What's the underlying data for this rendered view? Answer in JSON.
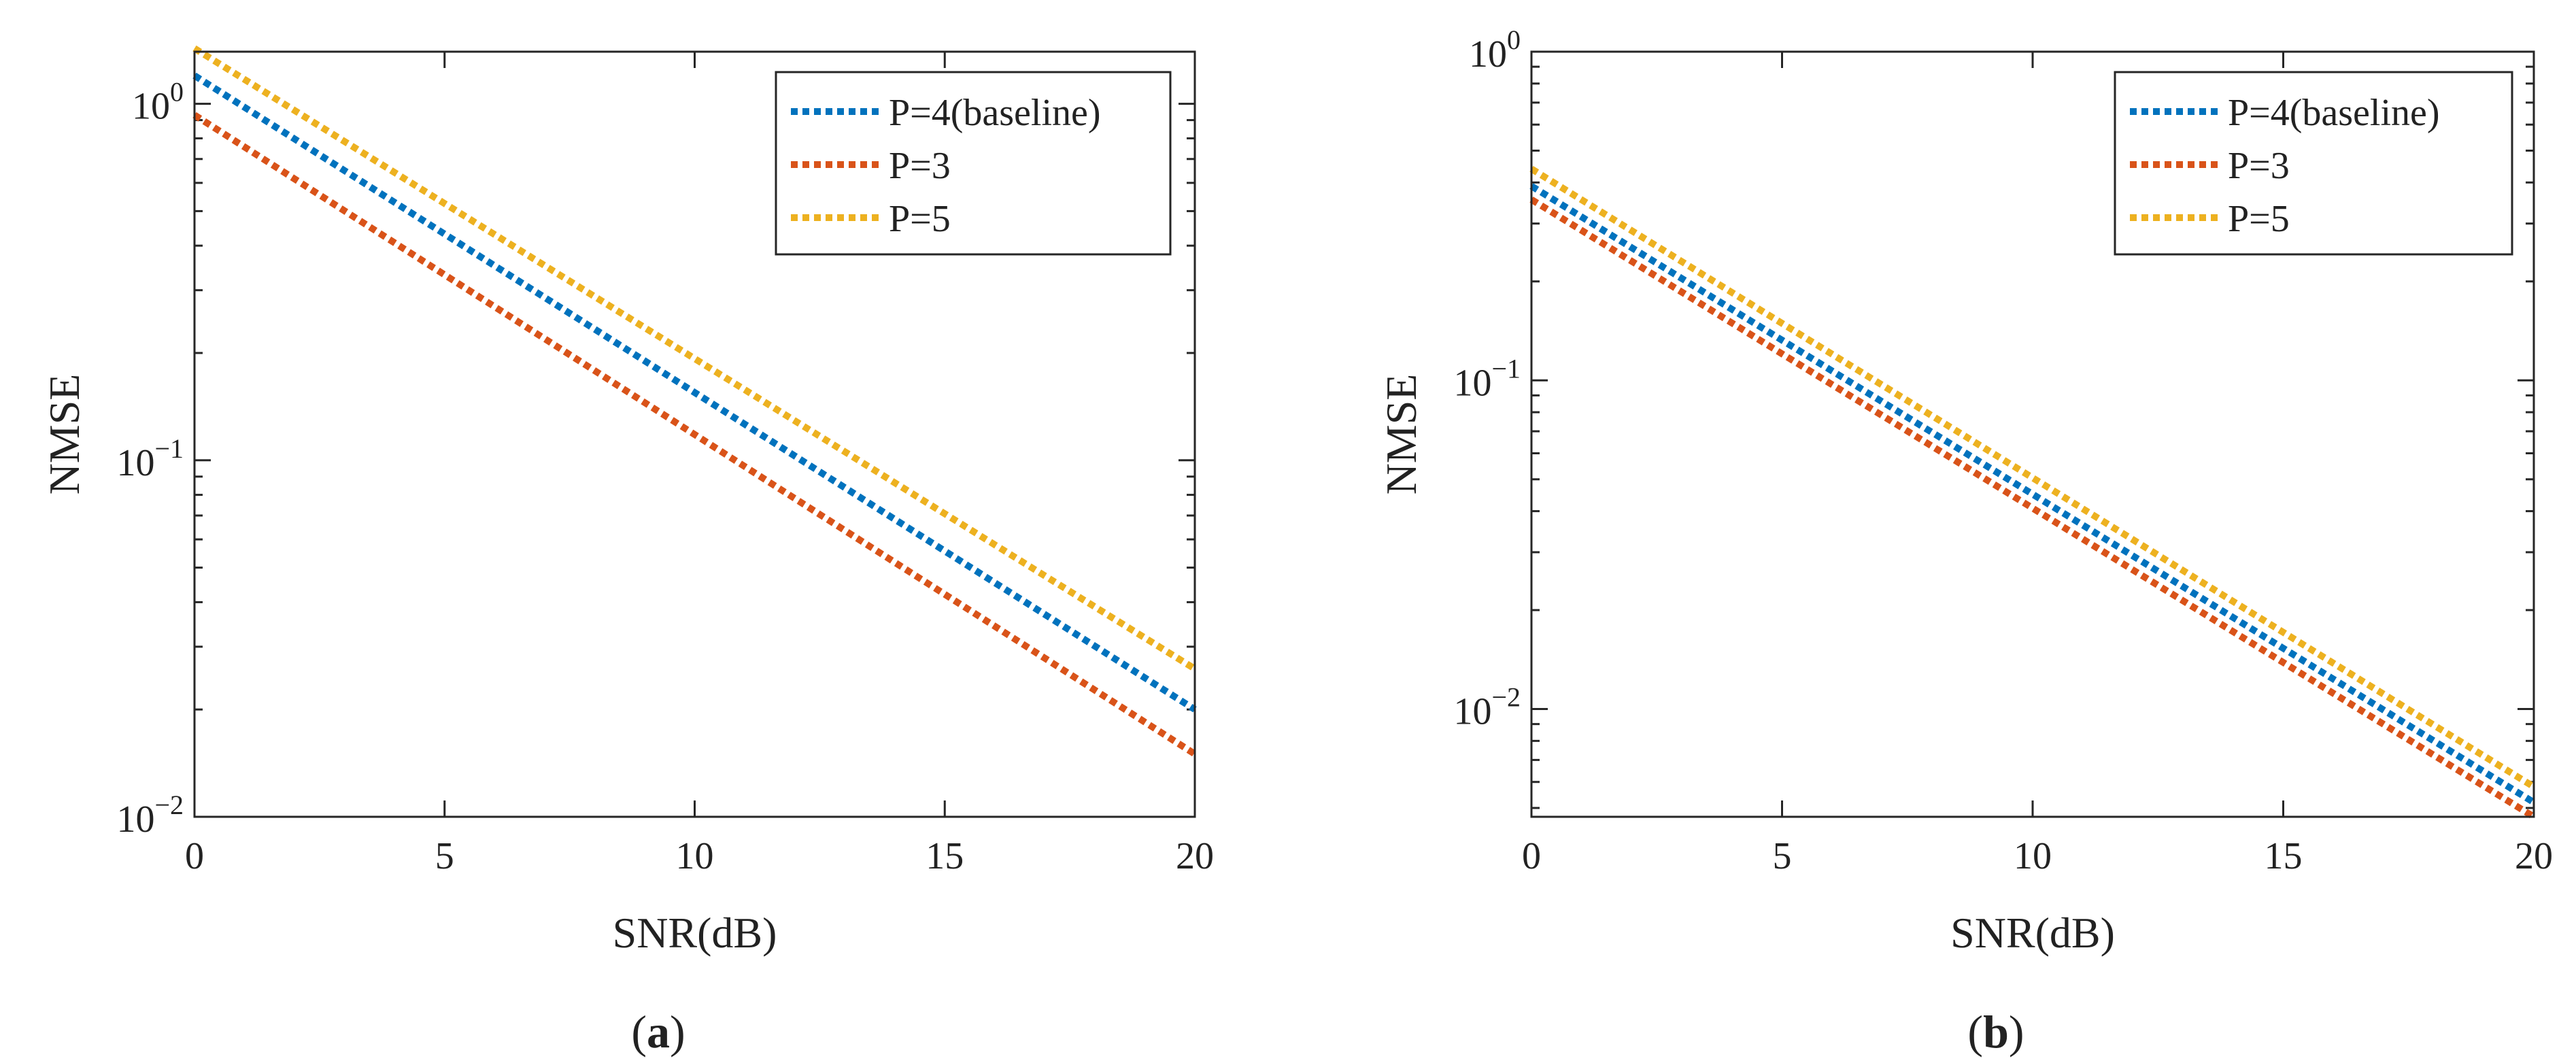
{
  "chart_data": [
    {
      "type": "line",
      "panel_label": "a",
      "yscale": "log",
      "xlabel": "SNR(dB)",
      "ylabel": "NMSE",
      "xlim": [
        0,
        20
      ],
      "ylim": [
        0.01,
        1.4
      ],
      "x_ticks": [
        0,
        5,
        10,
        15,
        20
      ],
      "x_tick_labels": [
        "0",
        "5",
        "10",
        "15",
        "20"
      ],
      "y_ticks": [
        {
          "value": 1,
          "base": "10",
          "exp": "0"
        },
        {
          "value": 0.1,
          "base": "10",
          "exp": "−1"
        },
        {
          "value": 0.01,
          "base": "10",
          "exp": "−2"
        }
      ],
      "legend_position": "top-right",
      "line_style": "dotted",
      "series": [
        {
          "name": "P=4(baseline)",
          "color": "#0072BD",
          "x": [
            0,
            20
          ],
          "y": [
            1.2,
            0.02
          ]
        },
        {
          "name": "P=3",
          "color": "#D95319",
          "x": [
            0,
            20
          ],
          "y": [
            0.93,
            0.015
          ]
        },
        {
          "name": "P=5",
          "color": "#EDB120",
          "x": [
            0,
            20
          ],
          "y": [
            1.43,
            0.026
          ]
        }
      ]
    },
    {
      "type": "line",
      "panel_label": "b",
      "yscale": "log",
      "xlabel": "SNR(dB)",
      "ylabel": "NMSE",
      "xlim": [
        0,
        20
      ],
      "ylim": [
        0.0047,
        1
      ],
      "x_ticks": [
        0,
        5,
        10,
        15,
        20
      ],
      "x_tick_labels": [
        "0",
        "5",
        "10",
        "15",
        "20"
      ],
      "y_ticks": [
        {
          "value": 1,
          "base": "10",
          "exp": "0"
        },
        {
          "value": 0.1,
          "base": "10",
          "exp": "−1"
        },
        {
          "value": 0.01,
          "base": "10",
          "exp": "−2"
        }
      ],
      "legend_position": "top-right",
      "line_style": "dotted",
      "series": [
        {
          "name": "P=4(baseline)",
          "color": "#0072BD",
          "x": [
            0,
            20
          ],
          "y": [
            0.39,
            0.0052
          ]
        },
        {
          "name": "P=3",
          "color": "#D95319",
          "x": [
            0,
            20
          ],
          "y": [
            0.355,
            0.0047
          ]
        },
        {
          "name": "P=5",
          "color": "#EDB120",
          "x": [
            0,
            20
          ],
          "y": [
            0.44,
            0.0058
          ]
        }
      ]
    }
  ]
}
